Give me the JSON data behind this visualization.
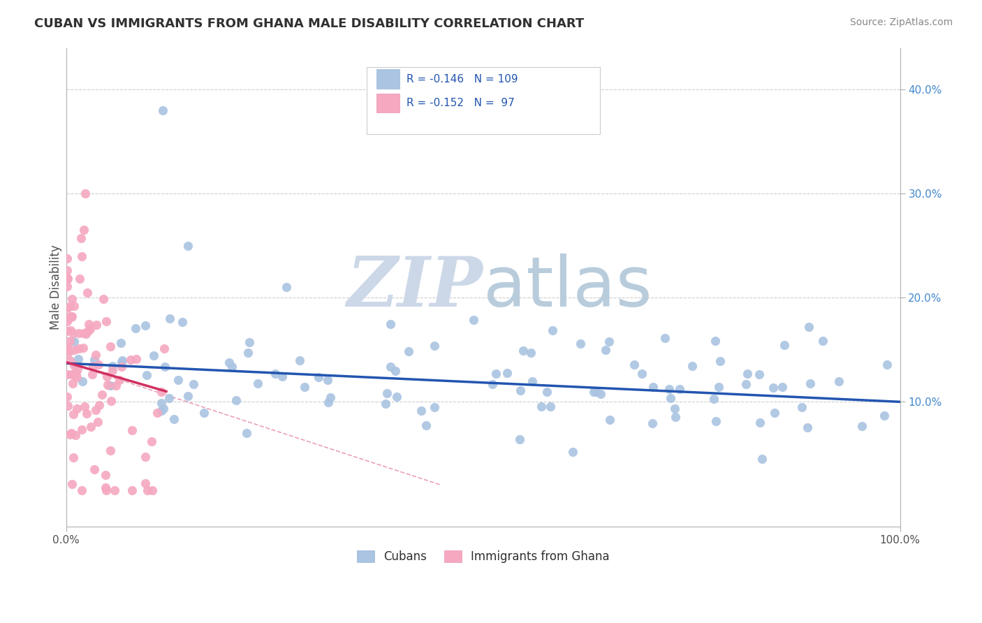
{
  "title": "CUBAN VS IMMIGRANTS FROM GHANA MALE DISABILITY CORRELATION CHART",
  "source": "Source: ZipAtlas.com",
  "ylabel": "Male Disability",
  "xlim": [
    0,
    1.0
  ],
  "ylim": [
    -0.02,
    0.44
  ],
  "ytick_labels": [
    "10.0%",
    "20.0%",
    "30.0%",
    "40.0%"
  ],
  "yticks": [
    0.1,
    0.2,
    0.3,
    0.4
  ],
  "series1_color": "#aac4e2",
  "series2_color": "#f5a8c0",
  "line1_color": "#2255b0",
  "line2_color": "#d03060",
  "watermark_color": "#ccd8e8",
  "background_color": "#ffffff",
  "grid_color": "#cccccc",
  "legend_border_color": "#cccccc",
  "title_color": "#303030",
  "source_color": "#888888",
  "ylabel_color": "#505050",
  "yticklabel_color": "#4488cc",
  "xticklabel_color": "#505050"
}
